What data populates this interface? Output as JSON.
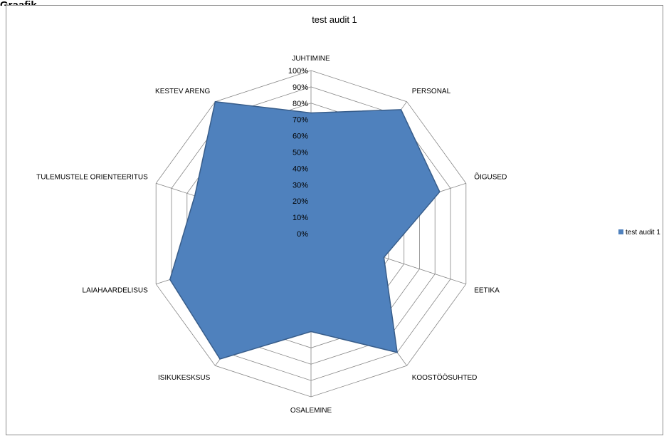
{
  "header": {
    "label": "Graafik"
  },
  "chart_data": {
    "type": "radar",
    "title": "test audit 1",
    "categories": [
      "JUHTIMINE",
      "PERSONAL",
      "ÕIGUSED",
      "EETIKA",
      "KOOSTÖÖSUHTED",
      "OSALEMINE",
      "ISIKUKESKSUS",
      "LAIAHAARDELISUS",
      "TULEMUSTELE ORIENTEERITUS",
      "KESTEV ARENG"
    ],
    "ylim": [
      0,
      100
    ],
    "ticks": [
      "0%",
      "10%",
      "20%",
      "30%",
      "40%",
      "50%",
      "60%",
      "70%",
      "80%",
      "90%",
      "100%"
    ],
    "series": [
      {
        "name": "test audit 1",
        "values": [
          74,
          94,
          83,
          47,
          90,
          60,
          95,
          91,
          75,
          100
        ]
      }
    ],
    "legend": "right",
    "colors": {
      "fill": "#4f81bd",
      "stroke": "#385d8a",
      "grid": "#868686"
    }
  }
}
